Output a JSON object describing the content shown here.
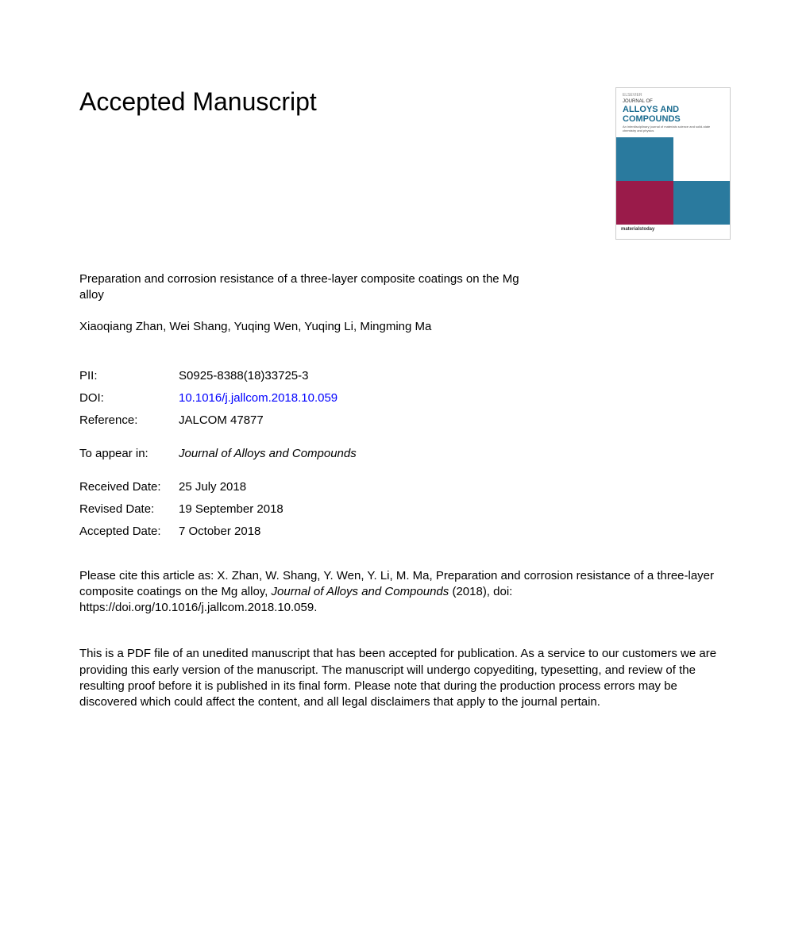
{
  "heading": "Accepted Manuscript",
  "cover": {
    "publisher_mark": "ELSEVIER",
    "journal_prefix": "JOURNAL OF",
    "journal_title": "ALLOYS AND COMPOUNDS",
    "subtitle": "An interdisciplinary journal of materials science and solid-state chemistry and physics",
    "footer": "materialstoday",
    "colors": {
      "sq1": "#2a7a9e",
      "sq2": "#ffffff",
      "sq3": "#9a1b4a",
      "sq4": "#2a7a9e"
    }
  },
  "article": {
    "title": "Preparation and corrosion resistance of a three-layer composite coatings on the Mg alloy",
    "authors": "Xiaoqiang Zhan, Wei Shang, Yuqing Wen, Yuqing Li, Mingming Ma"
  },
  "meta": {
    "pii_label": "PII:",
    "pii_value": "S0925-8388(18)33725-3",
    "doi_label": "DOI:",
    "doi_value": "10.1016/j.jallcom.2018.10.059",
    "reference_label": "Reference:",
    "reference_value": "JALCOM 47877",
    "appear_label": "To appear in:",
    "appear_value": "Journal of Alloys and Compounds",
    "received_label": "Received Date:",
    "received_value": "25 July 2018",
    "revised_label": "Revised Date:",
    "revised_value": "19 September 2018",
    "accepted_label": "Accepted Date:",
    "accepted_value": "7 October 2018"
  },
  "citation": {
    "prefix": "Please cite this article as: X. Zhan, W. Shang, Y. Wen, Y. Li, M. Ma, Preparation and corrosion resistance of a three-layer composite coatings on the Mg alloy, ",
    "journal": "Journal of Alloys and Compounds",
    "suffix": " (2018), doi: https://doi.org/10.1016/j.jallcom.2018.10.059."
  },
  "disclaimer": "This is a PDF file of an unedited manuscript that has been accepted for publication. As a service to our customers we are providing this early version of the manuscript. The manuscript will undergo copyediting, typesetting, and review of the resulting proof before it is published in its final form. Please note that during the production process errors may be discovered which could affect the content, and all legal disclaimers that apply to the journal pertain."
}
